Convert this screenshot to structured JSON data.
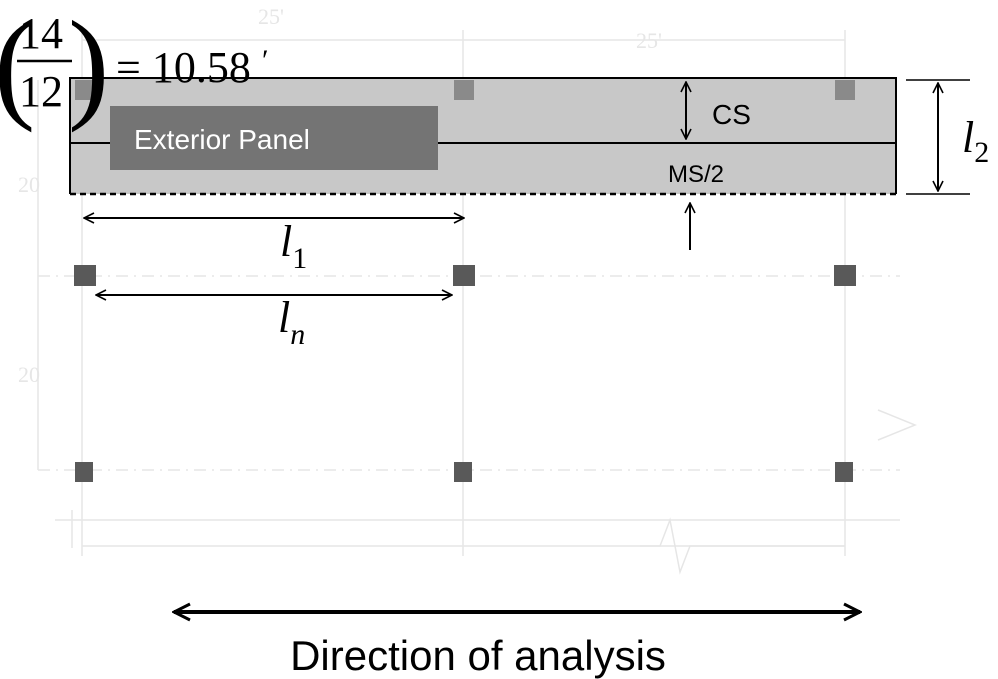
{
  "formula": {
    "numerator": "14",
    "denominator": "12",
    "result": "= 10.58",
    "prime": "′"
  },
  "labels": {
    "exterior_panel": "Exterior Panel",
    "cs": "CS",
    "ms_half": "MS/2",
    "l1_base": "l",
    "l1_sub": "1",
    "ln_base": "l",
    "ln_sub": "n",
    "l2_base": "l",
    "l2_sub": "2",
    "direction": "Direction of analysis"
  },
  "faint_plan_labels": {
    "span_left": "25'",
    "span_right": "25'",
    "row_top": "20",
    "row_middle": "20"
  },
  "colors": {
    "panel_fill": "#c8c8c8",
    "label_box": "#747474",
    "column": "#595959",
    "faint": "#e6e6e6",
    "ink": "#000000"
  }
}
